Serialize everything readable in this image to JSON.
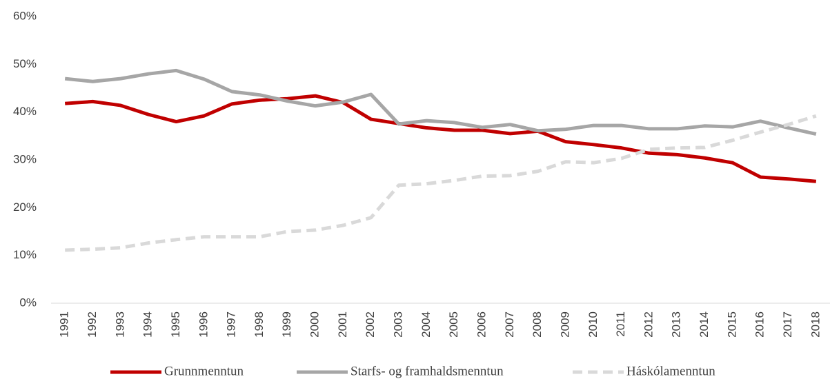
{
  "chart_data": {
    "type": "line",
    "categories": [
      "1991",
      "1992",
      "1993",
      "1994",
      "1995",
      "1996",
      "1997",
      "1998",
      "1999",
      "2000",
      "2001",
      "2002",
      "2003",
      "2004",
      "2005",
      "2006",
      "2007",
      "2008",
      "2009",
      "2010",
      "2011",
      "2012",
      "2013",
      "2014",
      "2015",
      "2016",
      "2017",
      "2018"
    ],
    "series": [
      {
        "name": "Grunnmenntun",
        "color": "#c00000",
        "dashed": false,
        "values": [
          41.8,
          42.2,
          41.4,
          39.5,
          38.0,
          39.2,
          41.7,
          42.5,
          42.8,
          43.4,
          42.0,
          38.5,
          37.6,
          36.7,
          36.2,
          36.2,
          35.5,
          36.0,
          33.8,
          33.2,
          32.5,
          31.4,
          31.1,
          30.4,
          29.4,
          26.4,
          26.0,
          25.5
        ]
      },
      {
        "name": "Starfs- og framhaldsmenntun",
        "color": "#a6a6a6",
        "dashed": false,
        "values": [
          47.0,
          46.4,
          47.0,
          48.0,
          48.7,
          46.9,
          44.3,
          43.6,
          42.3,
          41.3,
          42.1,
          43.7,
          37.5,
          38.2,
          37.8,
          36.8,
          37.4,
          36.1,
          36.4,
          37.2,
          37.2,
          36.5,
          36.5,
          37.1,
          36.9,
          38.1,
          36.7,
          35.4
        ]
      },
      {
        "name": "Háskólamenntun",
        "color": "#d9d9d9",
        "dashed": true,
        "values": [
          11.1,
          11.3,
          11.6,
          12.6,
          13.3,
          13.9,
          13.9,
          13.9,
          15.0,
          15.3,
          16.3,
          17.9,
          24.7,
          25.0,
          25.7,
          26.6,
          26.7,
          27.6,
          29.6,
          29.4,
          30.3,
          32.2,
          32.5,
          32.6,
          34.1,
          35.8,
          37.4,
          39.2
        ]
      }
    ],
    "ylim": [
      0,
      60
    ],
    "yticks": [
      {
        "value": 0,
        "label": "0%"
      },
      {
        "value": 10,
        "label": "10%"
      },
      {
        "value": 20,
        "label": "20%"
      },
      {
        "value": 30,
        "label": "30%"
      },
      {
        "value": 40,
        "label": "40%"
      },
      {
        "value": 50,
        "label": "50%"
      },
      {
        "value": 60,
        "label": "60%"
      }
    ],
    "grid": false,
    "legend": "bottom"
  }
}
